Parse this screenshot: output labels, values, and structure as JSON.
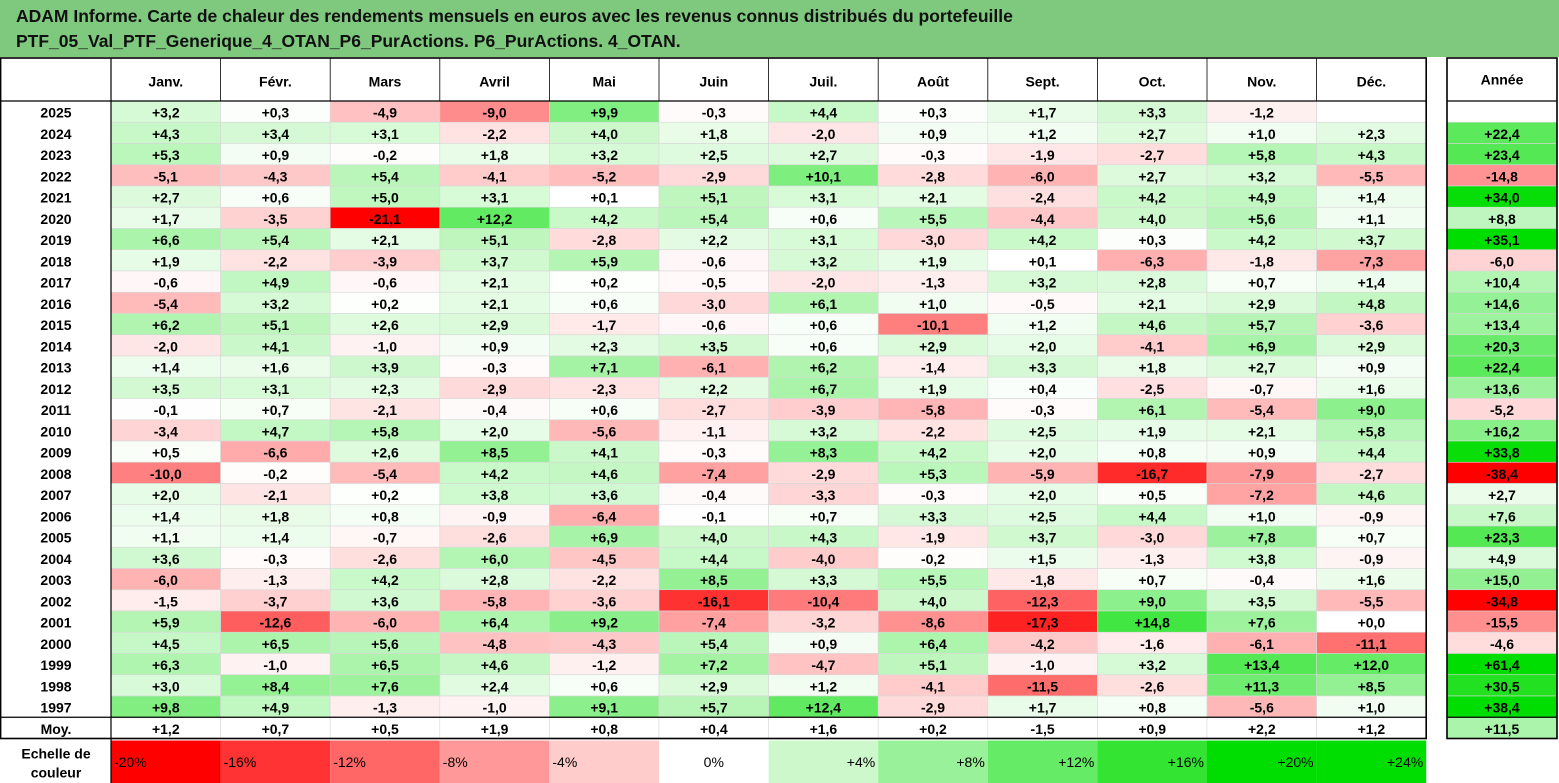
{
  "title": {
    "line1": "ADAM Informe. Carte de chaleur des rendements mensuels en euros avec les revenus connus distribués du portefeuille",
    "line2": "PTF_05_Val_PTF_Generique_4_OTAN_P6_PurActions. P6_PurActions. 4_OTAN."
  },
  "colors": {
    "title_bg": "#7fc97f",
    "neutral": "#ffffff",
    "red_max": "#ff0000",
    "green_max": "#00dd00"
  },
  "chart_data": {
    "type": "heatmap",
    "columns": [
      "Janv.",
      "Févr.",
      "Mars",
      "Avril",
      "Mai",
      "Juin",
      "Juil.",
      "Août",
      "Sept.",
      "Oct.",
      "Nov.",
      "Déc."
    ],
    "year_column": "Année",
    "rows": [
      {
        "label": "2025",
        "months": [
          "+3,2",
          "+0,3",
          "-4,9",
          "-9,0",
          "+9,9",
          "-0,3",
          "+4,4",
          "+0,3",
          "+1,7",
          "+3,3",
          "-1,2",
          ""
        ],
        "year": ""
      },
      {
        "label": "2024",
        "months": [
          "+4,3",
          "+3,4",
          "+3,1",
          "-2,2",
          "+4,0",
          "+1,8",
          "-2,0",
          "+0,9",
          "+1,2",
          "+2,7",
          "+1,0",
          "+2,3"
        ],
        "year": "+22,4"
      },
      {
        "label": "2023",
        "months": [
          "+5,3",
          "+0,9",
          "-0,2",
          "+1,8",
          "+3,2",
          "+2,5",
          "+2,7",
          "-0,3",
          "-1,9",
          "-2,7",
          "+5,8",
          "+4,3"
        ],
        "year": "+23,4"
      },
      {
        "label": "2022",
        "months": [
          "-5,1",
          "-4,3",
          "+5,4",
          "-4,1",
          "-5,2",
          "-2,9",
          "+10,1",
          "-2,8",
          "-6,0",
          "+2,7",
          "+3,2",
          "-5,5"
        ],
        "year": "-14,8"
      },
      {
        "label": "2021",
        "months": [
          "+2,7",
          "+0,6",
          "+5,0",
          "+3,1",
          "+0,1",
          "+5,1",
          "+3,1",
          "+2,1",
          "-2,4",
          "+4,2",
          "+4,9",
          "+1,4"
        ],
        "year": "+34,0"
      },
      {
        "label": "2020",
        "months": [
          "+1,7",
          "-3,5",
          "-21,1",
          "+12,2",
          "+4,2",
          "+5,4",
          "+0,6",
          "+5,5",
          "-4,4",
          "+4,0",
          "+5,6",
          "+1,1"
        ],
        "year": "+8,8"
      },
      {
        "label": "2019",
        "months": [
          "+6,6",
          "+5,4",
          "+2,1",
          "+5,1",
          "-2,8",
          "+2,2",
          "+3,1",
          "-3,0",
          "+4,2",
          "+0,3",
          "+4,2",
          "+3,7"
        ],
        "year": "+35,1"
      },
      {
        "label": "2018",
        "months": [
          "+1,9",
          "-2,2",
          "-3,9",
          "+3,7",
          "+5,9",
          "-0,6",
          "+3,2",
          "+1,9",
          "+0,1",
          "-6,3",
          "-1,8",
          "-7,3"
        ],
        "year": "-6,0"
      },
      {
        "label": "2017",
        "months": [
          "-0,6",
          "+4,9",
          "-0,6",
          "+2,1",
          "+0,2",
          "-0,5",
          "-2,0",
          "-1,3",
          "+3,2",
          "+2,8",
          "+0,7",
          "+1,4"
        ],
        "year": "+10,4"
      },
      {
        "label": "2016",
        "months": [
          "-5,4",
          "+3,2",
          "+0,2",
          "+2,1",
          "+0,6",
          "-3,0",
          "+6,1",
          "+1,0",
          "-0,5",
          "+2,1",
          "+2,9",
          "+4,8"
        ],
        "year": "+14,6"
      },
      {
        "label": "2015",
        "months": [
          "+6,2",
          "+5,1",
          "+2,6",
          "+2,9",
          "-1,7",
          "-0,6",
          "+0,6",
          "-10,1",
          "+1,2",
          "+4,6",
          "+5,7",
          "-3,6"
        ],
        "year": "+13,4"
      },
      {
        "label": "2014",
        "months": [
          "-2,0",
          "+4,1",
          "-1,0",
          "+0,9",
          "+2,3",
          "+3,5",
          "+0,6",
          "+2,9",
          "+2,0",
          "-4,1",
          "+6,9",
          "+2,9"
        ],
        "year": "+20,3"
      },
      {
        "label": "2013",
        "months": [
          "+1,4",
          "+1,6",
          "+3,9",
          "-0,3",
          "+7,1",
          "-6,1",
          "+6,2",
          "-1,4",
          "+3,3",
          "+1,8",
          "+2,7",
          "+0,9"
        ],
        "year": "+22,4"
      },
      {
        "label": "2012",
        "months": [
          "+3,5",
          "+3,1",
          "+2,3",
          "-2,9",
          "-2,3",
          "+2,2",
          "+6,7",
          "+1,9",
          "+0,4",
          "-2,5",
          "-0,7",
          "+1,6"
        ],
        "year": "+13,6"
      },
      {
        "label": "2011",
        "months": [
          "-0,1",
          "+0,7",
          "-2,1",
          "-0,4",
          "+0,6",
          "-2,7",
          "-3,9",
          "-5,8",
          "-0,3",
          "+6,1",
          "-5,4",
          "+9,0"
        ],
        "year": "-5,2"
      },
      {
        "label": "2010",
        "months": [
          "-3,4",
          "+4,7",
          "+5,8",
          "+2,0",
          "-5,6",
          "-1,1",
          "+3,2",
          "-2,2",
          "+2,5",
          "+1,9",
          "+2,1",
          "+5,8"
        ],
        "year": "+16,2"
      },
      {
        "label": "2009",
        "months": [
          "+0,5",
          "-6,6",
          "+2,6",
          "+8,5",
          "+4,1",
          "-0,3",
          "+8,3",
          "+4,2",
          "+2,0",
          "+0,8",
          "+0,9",
          "+4,4"
        ],
        "year": "+33,8"
      },
      {
        "label": "2008",
        "months": [
          "-10,0",
          "-0,2",
          "-5,4",
          "+4,2",
          "+4,6",
          "-7,4",
          "-2,9",
          "+5,3",
          "-5,9",
          "-16,7",
          "-7,9",
          "-2,7"
        ],
        "year": "-38,4"
      },
      {
        "label": "2007",
        "months": [
          "+2,0",
          "-2,1",
          "+0,2",
          "+3,8",
          "+3,6",
          "-0,4",
          "-3,3",
          "-0,3",
          "+2,0",
          "+0,5",
          "-7,2",
          "+4,6"
        ],
        "year": "+2,7"
      },
      {
        "label": "2006",
        "months": [
          "+1,4",
          "+1,8",
          "+0,8",
          "-0,9",
          "-6,4",
          "-0,1",
          "+0,7",
          "+3,3",
          "+2,5",
          "+4,4",
          "+1,0",
          "-0,9"
        ],
        "year": "+7,6"
      },
      {
        "label": "2005",
        "months": [
          "+1,1",
          "+1,4",
          "-0,7",
          "-2,6",
          "+6,9",
          "+4,0",
          "+4,3",
          "-1,9",
          "+3,7",
          "-3,0",
          "+7,8",
          "+0,7"
        ],
        "year": "+23,3"
      },
      {
        "label": "2004",
        "months": [
          "+3,6",
          "-0,3",
          "-2,6",
          "+6,0",
          "-4,5",
          "+4,4",
          "-4,0",
          "-0,2",
          "+1,5",
          "-1,3",
          "+3,8",
          "-0,9"
        ],
        "year": "+4,9"
      },
      {
        "label": "2003",
        "months": [
          "-6,0",
          "-1,3",
          "+4,2",
          "+2,8",
          "-2,2",
          "+8,5",
          "+3,3",
          "+5,5",
          "-1,8",
          "+0,7",
          "-0,4",
          "+1,6"
        ],
        "year": "+15,0"
      },
      {
        "label": "2002",
        "months": [
          "-1,5",
          "-3,7",
          "+3,6",
          "-5,8",
          "-3,6",
          "-16,1",
          "-10,4",
          "+4,0",
          "-12,3",
          "+9,0",
          "+3,5",
          "-5,5"
        ],
        "year": "-34,8"
      },
      {
        "label": "2001",
        "months": [
          "+5,9",
          "-12,6",
          "-6,0",
          "+6,4",
          "+9,2",
          "-7,4",
          "-3,2",
          "-8,6",
          "-17,3",
          "+14,8",
          "+7,6",
          "+0,0"
        ],
        "year": "-15,5"
      },
      {
        "label": "2000",
        "months": [
          "+4,5",
          "+6,5",
          "+5,6",
          "-4,8",
          "-4,3",
          "+5,4",
          "+0,9",
          "+6,4",
          "-4,2",
          "-1,6",
          "-6,1",
          "-11,1"
        ],
        "year": "-4,6"
      },
      {
        "label": "1999",
        "months": [
          "+6,3",
          "-1,0",
          "+6,5",
          "+4,6",
          "-1,2",
          "+7,2",
          "-4,7",
          "+5,1",
          "-1,0",
          "+3,2",
          "+13,4",
          "+12,0"
        ],
        "year": "+61,4"
      },
      {
        "label": "1998",
        "months": [
          "+3,0",
          "+8,4",
          "+7,6",
          "+2,4",
          "+0,6",
          "+2,9",
          "+1,2",
          "-4,1",
          "-11,5",
          "-2,6",
          "+11,3",
          "+8,5"
        ],
        "year": "+30,5"
      },
      {
        "label": "1997",
        "months": [
          "+9,8",
          "+4,9",
          "-1,3",
          "-1,0",
          "+9,1",
          "+5,7",
          "+12,4",
          "-2,9",
          "+1,7",
          "+0,8",
          "-5,6",
          "+1,0"
        ],
        "year": "+38,4"
      }
    ],
    "average": {
      "label": "Moy.",
      "months": [
        "+1,2",
        "+0,7",
        "+0,5",
        "+1,9",
        "+0,8",
        "+0,4",
        "+1,6",
        "+0,2",
        "-1,5",
        "+0,9",
        "+2,2",
        "+1,2"
      ],
      "year": "+11,5"
    },
    "scale": {
      "label_line1": "Echelle de",
      "label_line2": "couleur",
      "steps": [
        "-20%",
        "-16%",
        "-12%",
        "-8%",
        "-4%",
        "0%",
        "+4%",
        "+8%",
        "+12%",
        "+16%",
        "+20%",
        "+24%"
      ]
    },
    "monthly_color_limit": 20,
    "yearly_color_limit": 35
  }
}
